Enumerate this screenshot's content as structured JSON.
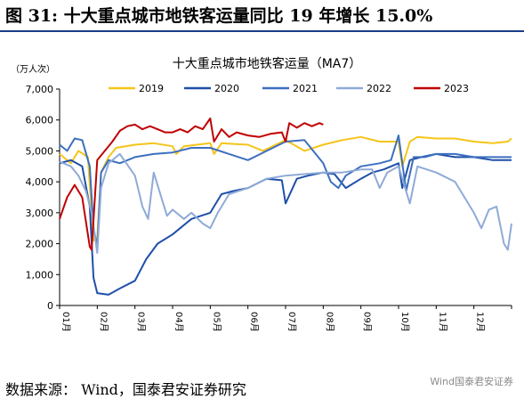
{
  "figure": {
    "title": "图 31: 十大重点城市地铁客运量同比 19 年增长 15.0%",
    "source": "数据来源：  Wind，国泰君安证券研究",
    "watermark": "Wind国泰君安证券"
  },
  "chart_data": {
    "type": "line",
    "title": "十大重点城市地铁客运量（MA7）",
    "ylabel": "（万人次）",
    "ylim": [
      0,
      7000
    ],
    "yticks": [
      0,
      1000,
      2000,
      3000,
      4000,
      5000,
      6000,
      7000
    ],
    "ytick_labels": [
      "0",
      "1,000",
      "2,000",
      "3,000",
      "4,000",
      "5,000",
      "6,000",
      "7,000"
    ],
    "x_ticks": [
      "01月",
      "02月",
      "03月",
      "04月",
      "05月",
      "06月",
      "07月",
      "08月",
      "09月",
      "10月",
      "11月",
      "12月"
    ],
    "xlim": [
      1,
      13
    ],
    "grid": false,
    "legend": "top",
    "series": [
      {
        "name": "2019",
        "color": "#f5c518",
        "points": [
          [
            1.0,
            4900
          ],
          [
            1.3,
            4600
          ],
          [
            1.5,
            5000
          ],
          [
            1.75,
            4800
          ],
          [
            1.9,
            2100
          ],
          [
            2.0,
            2200
          ],
          [
            2.1,
            4300
          ],
          [
            2.3,
            4800
          ],
          [
            2.5,
            5100
          ],
          [
            3.0,
            5200
          ],
          [
            3.5,
            5250
          ],
          [
            4.0,
            5150
          ],
          [
            4.1,
            4900
          ],
          [
            4.3,
            5150
          ],
          [
            5.0,
            5250
          ],
          [
            5.1,
            4900
          ],
          [
            5.3,
            5250
          ],
          [
            6.0,
            5200
          ],
          [
            6.4,
            5000
          ],
          [
            7.0,
            5350
          ],
          [
            7.5,
            5000
          ],
          [
            8.0,
            5200
          ],
          [
            8.5,
            5350
          ],
          [
            9.0,
            5450
          ],
          [
            9.5,
            5300
          ],
          [
            10.0,
            5300
          ],
          [
            10.1,
            4500
          ],
          [
            10.3,
            5300
          ],
          [
            10.5,
            5450
          ],
          [
            11.0,
            5400
          ],
          [
            11.5,
            5400
          ],
          [
            12.0,
            5300
          ],
          [
            12.5,
            5250
          ],
          [
            12.9,
            5300
          ],
          [
            13.0,
            5400
          ]
        ]
      },
      {
        "name": "2020",
        "color": "#1f4fa8",
        "points": [
          [
            1.0,
            4600
          ],
          [
            1.3,
            4700
          ],
          [
            1.6,
            4500
          ],
          [
            1.8,
            3200
          ],
          [
            1.9,
            900
          ],
          [
            2.0,
            400
          ],
          [
            2.3,
            350
          ],
          [
            2.6,
            550
          ],
          [
            3.0,
            800
          ],
          [
            3.3,
            1500
          ],
          [
            3.6,
            2000
          ],
          [
            4.0,
            2300
          ],
          [
            4.2,
            2500
          ],
          [
            4.5,
            2800
          ],
          [
            5.0,
            3000
          ],
          [
            5.3,
            3600
          ],
          [
            5.6,
            3700
          ],
          [
            6.0,
            3800
          ],
          [
            6.5,
            4100
          ],
          [
            6.9,
            4050
          ],
          [
            7.0,
            3300
          ],
          [
            7.3,
            4100
          ],
          [
            7.6,
            4200
          ],
          [
            8.0,
            4300
          ],
          [
            8.3,
            4250
          ],
          [
            8.6,
            3800
          ],
          [
            9.0,
            4100
          ],
          [
            9.3,
            4300
          ],
          [
            9.6,
            4400
          ],
          [
            10.0,
            4600
          ],
          [
            10.1,
            3800
          ],
          [
            10.3,
            4700
          ],
          [
            10.6,
            4800
          ],
          [
            11.0,
            4900
          ],
          [
            11.5,
            4800
          ],
          [
            12.0,
            4800
          ],
          [
            12.5,
            4700
          ],
          [
            13.0,
            4700
          ]
        ]
      },
      {
        "name": "2021",
        "color": "#3d6fbf",
        "points": [
          [
            1.0,
            5200
          ],
          [
            1.2,
            5000
          ],
          [
            1.4,
            5400
          ],
          [
            1.6,
            5350
          ],
          [
            1.8,
            4500
          ],
          [
            1.9,
            2500
          ],
          [
            2.0,
            1900
          ],
          [
            2.1,
            4300
          ],
          [
            2.3,
            4700
          ],
          [
            2.6,
            4600
          ],
          [
            3.0,
            4800
          ],
          [
            3.5,
            4900
          ],
          [
            4.0,
            4950
          ],
          [
            4.5,
            5100
          ],
          [
            5.0,
            5100
          ],
          [
            5.5,
            4900
          ],
          [
            6.0,
            4700
          ],
          [
            6.5,
            5000
          ],
          [
            7.0,
            5300
          ],
          [
            7.5,
            5350
          ],
          [
            8.0,
            4600
          ],
          [
            8.2,
            4000
          ],
          [
            8.4,
            3800
          ],
          [
            8.6,
            4200
          ],
          [
            9.0,
            4500
          ],
          [
            9.5,
            4600
          ],
          [
            9.8,
            4700
          ],
          [
            10.0,
            5500
          ],
          [
            10.2,
            3700
          ],
          [
            10.4,
            4800
          ],
          [
            10.7,
            4800
          ],
          [
            11.0,
            4900
          ],
          [
            11.5,
            4900
          ],
          [
            12.0,
            4800
          ],
          [
            12.5,
            4800
          ],
          [
            13.0,
            4800
          ]
        ]
      },
      {
        "name": "2022",
        "color": "#8faad8",
        "points": [
          [
            1.0,
            4650
          ],
          [
            1.3,
            4500
          ],
          [
            1.5,
            4200
          ],
          [
            1.7,
            3700
          ],
          [
            1.85,
            3000
          ],
          [
            2.0,
            1700
          ],
          [
            2.1,
            3800
          ],
          [
            2.3,
            4600
          ],
          [
            2.6,
            4900
          ],
          [
            3.0,
            4200
          ],
          [
            3.2,
            3200
          ],
          [
            3.35,
            2800
          ],
          [
            3.5,
            4300
          ],
          [
            3.7,
            3500
          ],
          [
            3.85,
            2900
          ],
          [
            4.0,
            3100
          ],
          [
            4.3,
            2800
          ],
          [
            4.5,
            3000
          ],
          [
            4.8,
            2650
          ],
          [
            5.0,
            2500
          ],
          [
            5.2,
            3000
          ],
          [
            5.5,
            3600
          ],
          [
            6.0,
            3800
          ],
          [
            6.5,
            4100
          ],
          [
            7.0,
            4200
          ],
          [
            7.5,
            4250
          ],
          [
            8.0,
            4300
          ],
          [
            8.5,
            4300
          ],
          [
            9.0,
            4400
          ],
          [
            9.3,
            4400
          ],
          [
            9.5,
            3800
          ],
          [
            9.7,
            4300
          ],
          [
            10.0,
            4500
          ],
          [
            10.3,
            3300
          ],
          [
            10.5,
            4500
          ],
          [
            11.0,
            4300
          ],
          [
            11.5,
            4000
          ],
          [
            12.0,
            3000
          ],
          [
            12.2,
            2500
          ],
          [
            12.4,
            3100
          ],
          [
            12.6,
            3200
          ],
          [
            12.8,
            2000
          ],
          [
            12.9,
            1800
          ],
          [
            13.0,
            2650
          ]
        ]
      },
      {
        "name": "2023",
        "color": "#c00000",
        "points": [
          [
            1.0,
            2800
          ],
          [
            1.2,
            3500
          ],
          [
            1.4,
            3900
          ],
          [
            1.6,
            3500
          ],
          [
            1.8,
            1900
          ],
          [
            1.85,
            1800
          ],
          [
            2.0,
            4700
          ],
          [
            2.2,
            5000
          ],
          [
            2.4,
            5300
          ],
          [
            2.6,
            5650
          ],
          [
            2.8,
            5800
          ],
          [
            3.0,
            5850
          ],
          [
            3.2,
            5700
          ],
          [
            3.4,
            5800
          ],
          [
            3.6,
            5700
          ],
          [
            3.8,
            5600
          ],
          [
            4.0,
            5600
          ],
          [
            4.2,
            5700
          ],
          [
            4.4,
            5600
          ],
          [
            4.6,
            5800
          ],
          [
            4.8,
            5700
          ],
          [
            5.0,
            6050
          ],
          [
            5.1,
            5300
          ],
          [
            5.3,
            5700
          ],
          [
            5.5,
            5450
          ],
          [
            5.7,
            5600
          ],
          [
            6.0,
            5500
          ],
          [
            6.3,
            5450
          ],
          [
            6.6,
            5550
          ],
          [
            6.9,
            5600
          ],
          [
            7.0,
            5300
          ],
          [
            7.1,
            5900
          ],
          [
            7.3,
            5750
          ],
          [
            7.5,
            5900
          ],
          [
            7.7,
            5800
          ],
          [
            7.9,
            5900
          ],
          [
            8.0,
            5850
          ]
        ]
      }
    ]
  }
}
